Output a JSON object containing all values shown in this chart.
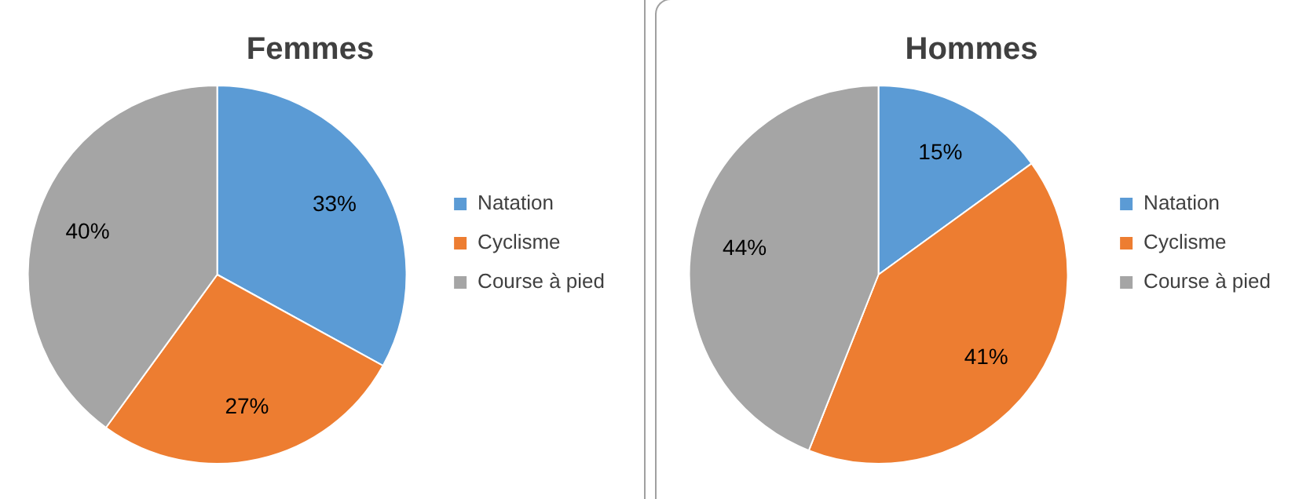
{
  "chart_data": [
    {
      "type": "pie",
      "title": "Femmes",
      "categories": [
        "Natation",
        "Cyclisme",
        "Course à pied"
      ],
      "values": [
        33,
        27,
        40
      ],
      "value_labels": [
        "33%",
        "27%",
        "40%"
      ],
      "colors": [
        "#5b9bd5",
        "#ed7d31",
        "#a5a5a5"
      ],
      "legend": "right"
    },
    {
      "type": "pie",
      "title": "Hommes",
      "categories": [
        "Natation",
        "Cyclisme",
        "Course à pied"
      ],
      "values": [
        15,
        41,
        44
      ],
      "value_labels": [
        "15%",
        "41%",
        "44%"
      ],
      "colors": [
        "#5b9bd5",
        "#ed7d31",
        "#a5a5a5"
      ],
      "legend": "right"
    }
  ]
}
